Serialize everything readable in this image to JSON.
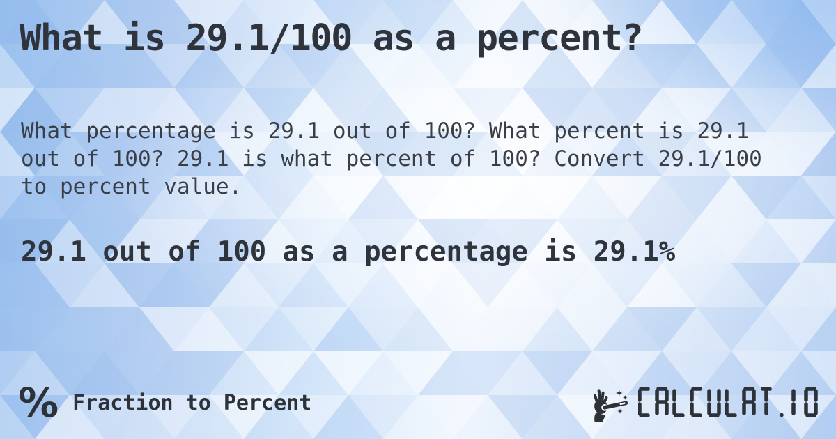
{
  "card": {
    "title": "What is 29.1/100 as a percent?",
    "description": "What percentage is 29.1 out of 100? What percent is 29.1 out of 100? 29.1 is what percent of 100? Convert 29.1/100 to percent value.",
    "answer": "29.1 out of 100 as a percentage is 29.1%"
  },
  "footer": {
    "category": {
      "icon": "percent-icon",
      "symbol": "%",
      "label": "Fraction to Percent"
    },
    "brand": {
      "icon": "magic-wand-hand-icon",
      "text": "CALCULAT.IO"
    }
  },
  "colors": {
    "heading_text": "#2f333b",
    "body_text": "#3a3f47",
    "logo": "#2d3138",
    "background_blue": "#9cc2ef",
    "background_light": "#f2f7fe",
    "mosaic_blue": "#7daae6",
    "mosaic_white": "#ffffff"
  }
}
